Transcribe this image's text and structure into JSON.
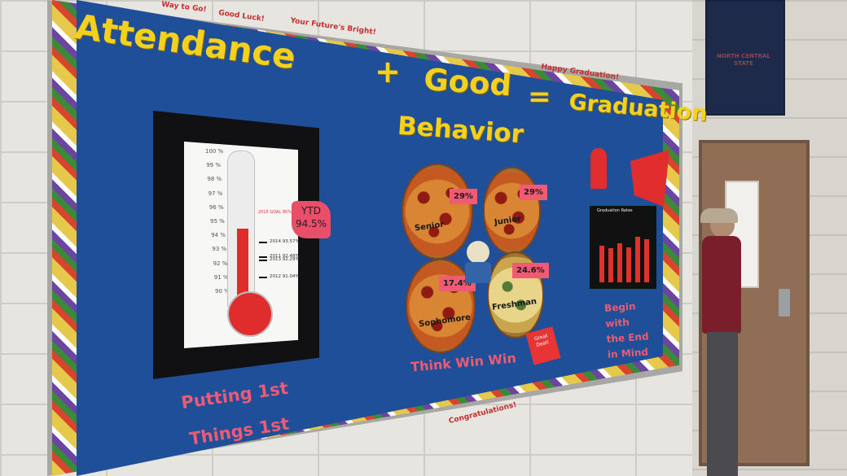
{
  "board": {
    "title_word_1": "Attendance",
    "plus_sign": "+",
    "title_word_2": "Good",
    "equals_sign": "=",
    "title_word_3": "Graduation",
    "title_word_4": "Behavior",
    "border_messages": [
      "Way to Go!",
      "Good Luck!",
      "Your Future's Bright!",
      "Happy Graduation!",
      "Congratulations!"
    ]
  },
  "thermometer": {
    "ticks": [
      "100 %",
      "99 %",
      "98 %",
      "97 %",
      "96 %",
      "95 %",
      "94 %",
      "93 %",
      "92 %",
      "91 %",
      "90 %"
    ],
    "goal_label": "2015 GOAL 95%",
    "fill_percent": 94.5,
    "year_marks": [
      {
        "label": "2014 93.57%",
        "value": 93.57
      },
      {
        "label": "2011 92.48%",
        "value": 92.48
      },
      {
        "label": "2013 92.29%",
        "value": 92.29
      },
      {
        "label": "2012 91.04%",
        "value": 91.04
      }
    ],
    "ytd_label": "YTD",
    "ytd_value": "94.5%"
  },
  "pizzas": [
    {
      "label": "Senior",
      "percent": "29%"
    },
    {
      "label": "Junior",
      "percent": "29%"
    },
    {
      "label": "Sophomore",
      "percent": "17.4%"
    },
    {
      "label": "Freshman",
      "percent": "24.6%"
    }
  ],
  "sticker_text": "Great Deal!",
  "graduation_chart": {
    "title": "Graduation Rates",
    "bar_levels": [
      0.62,
      0.58,
      0.66,
      0.6,
      0.78,
      0.74
    ]
  },
  "captions": {
    "habit_2": "Begin with the End in Mind",
    "habit_1_line_1": "Putting 1st",
    "habit_1_line_2": "Things 1st",
    "think_win_win": "Think Win Win"
  },
  "banner_text": "NORTH CENTRAL STATE"
}
